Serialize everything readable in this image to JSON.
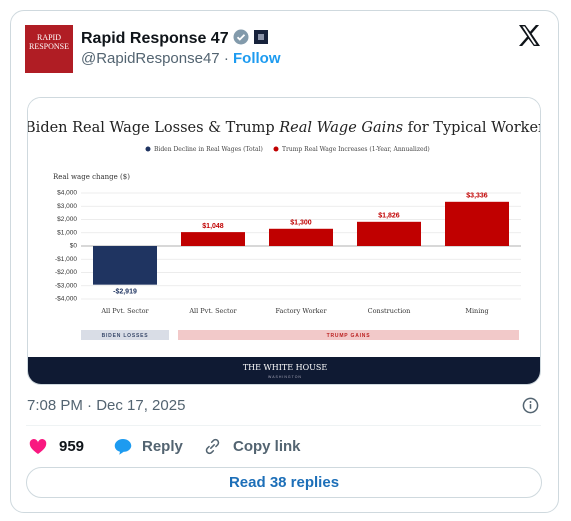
{
  "tweet": {
    "avatar_text": "RAPID RESPONSE",
    "name": "Rapid Response 47",
    "handle": "@RapidResponse47",
    "separator": "·",
    "follow": "Follow",
    "timestamp": "7:08 PM · Dec 17, 2025",
    "likes": 959,
    "reply": "Reply",
    "copy_link": "Copy link",
    "read_replies": "Read 38 replies"
  },
  "chart_data": {
    "type": "bar",
    "title_parts": [
      "Biden Real Wage Losses & Trump ",
      "Real Wage Gains",
      " for Typical Worker"
    ],
    "ylabel": "Real wage change ($)",
    "categories": [
      "All Pvt. Sector",
      "All Pvt. Sector",
      "Factory Worker",
      "Construction",
      "Mining"
    ],
    "series": [
      {
        "name": "Biden Decline in Real Wages (Total)",
        "color": "#1f3461",
        "values": [
          -2919,
          null,
          null,
          null,
          null
        ],
        "value_labels": [
          "-$2,919",
          null,
          null,
          null,
          null
        ]
      },
      {
        "name": "Trump Real Wage Increases (1-Year, Annualized)",
        "color": "#c00000",
        "values": [
          null,
          1048,
          1300,
          1826,
          3336
        ],
        "value_labels": [
          null,
          "$1,048",
          "$1,300",
          "$1,826",
          "$3,336"
        ]
      }
    ],
    "ylim": [
      -4000,
      4000
    ],
    "yticks": [
      {
        "value": -4000,
        "label": "-$4,000"
      },
      {
        "value": -3000,
        "label": "-$3,000"
      },
      {
        "value": -2000,
        "label": "-$2,000"
      },
      {
        "value": -1000,
        "label": "-$1,000"
      },
      {
        "value": 0,
        "label": "$0"
      },
      {
        "value": 1000,
        "label": "$1,000"
      },
      {
        "value": 2000,
        "label": "$2,000"
      },
      {
        "value": 3000,
        "label": "$3,000"
      },
      {
        "value": 4000,
        "label": "$4,000"
      }
    ],
    "grid": true,
    "groups": [
      "BIDEN LOSSES",
      "TRUMP GAINS"
    ],
    "footer": [
      "THE WHITE HOUSE",
      "WASHINGTON"
    ]
  }
}
